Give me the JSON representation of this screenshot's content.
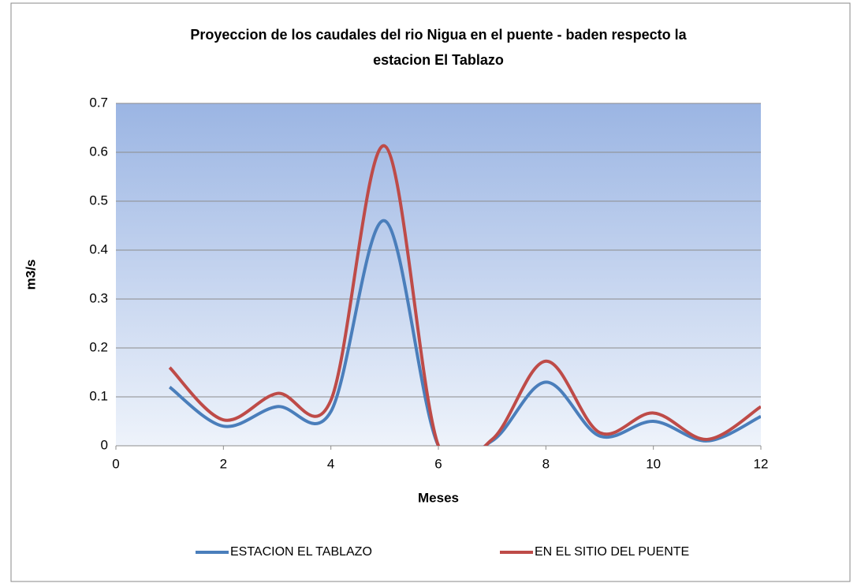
{
  "chart_data": {
    "type": "line",
    "title": [
      "Proyeccion de los caudales del rio Nigua en el puente - baden respecto la",
      "estacion El Tablazo"
    ],
    "x_label": "Meses",
    "y_label": "m3/s",
    "x": [
      1,
      2,
      3,
      4,
      5,
      6,
      7,
      8,
      9,
      10,
      11,
      12
    ],
    "series": [
      {
        "name": "ESTACION EL TABLAZO",
        "color": "#4a7ebb",
        "values": [
          0.12,
          0.04,
          0.08,
          0.07,
          0.46,
          0,
          0.01,
          0.13,
          0.02,
          0.05,
          0.01,
          0.06
        ]
      },
      {
        "name": "EN EL SITIO DEL PUENTE",
        "color": "#be4b48",
        "values": [
          0.16,
          0.053,
          0.107,
          0.093,
          0.613,
          0,
          0.013,
          0.173,
          0.027,
          0.067,
          0.013,
          0.08
        ]
      }
    ],
    "xlim": [
      0,
      12
    ],
    "xticks": [
      0,
      2,
      4,
      6,
      8,
      10,
      12
    ],
    "ylim": [
      0,
      0.7
    ],
    "yticks": [
      0,
      0.1,
      0.2,
      0.3,
      0.4,
      0.5,
      0.6,
      0.7
    ],
    "grid": true,
    "smooth": true,
    "legend": "bottom"
  }
}
